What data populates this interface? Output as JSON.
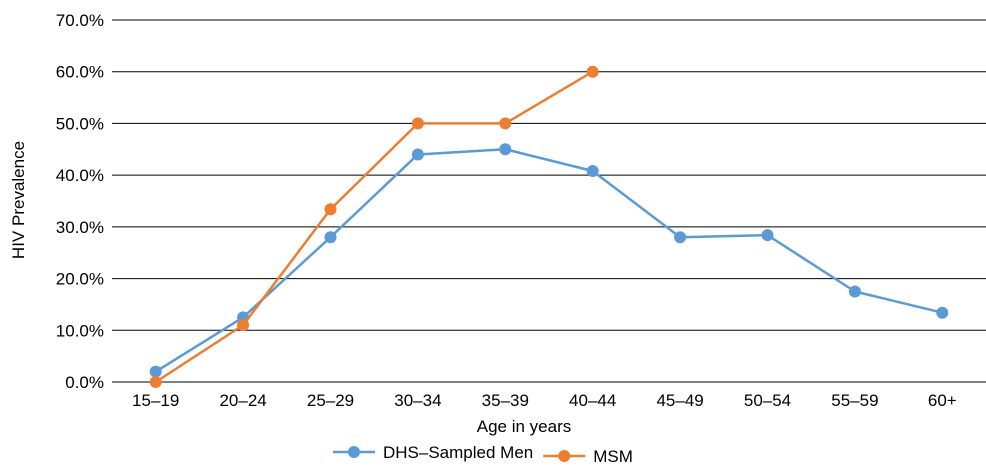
{
  "chart_data": {
    "type": "line",
    "title": "",
    "xlabel": "Age in years",
    "ylabel": "HIV Prevalence",
    "categories": [
      "15–19",
      "20–24",
      "25–29",
      "30–34",
      "35–39",
      "40–44",
      "45–49",
      "50–54",
      "55–59",
      "60+"
    ],
    "ylim": [
      0,
      70
    ],
    "yticks": [
      "0.0%",
      "10.0%",
      "20.0%",
      "30.0%",
      "40.0%",
      "50.0%",
      "60.0%",
      "70.0%"
    ],
    "ytick_values": [
      0,
      10,
      20,
      30,
      40,
      50,
      60,
      70
    ],
    "grid": "horizontal",
    "legend_position": "bottom",
    "series": [
      {
        "name": "DHS–Sampled Men",
        "color": "#5B9BD5",
        "values": [
          2.0,
          12.5,
          28.0,
          44.0,
          45.0,
          40.8,
          28.0,
          28.4,
          17.5,
          13.4
        ]
      },
      {
        "name": "MSM",
        "color": "#ED7D31",
        "values": [
          0.0,
          11.0,
          33.4,
          50.0,
          50.0,
          60.0,
          null,
          null,
          null,
          null
        ]
      }
    ]
  }
}
